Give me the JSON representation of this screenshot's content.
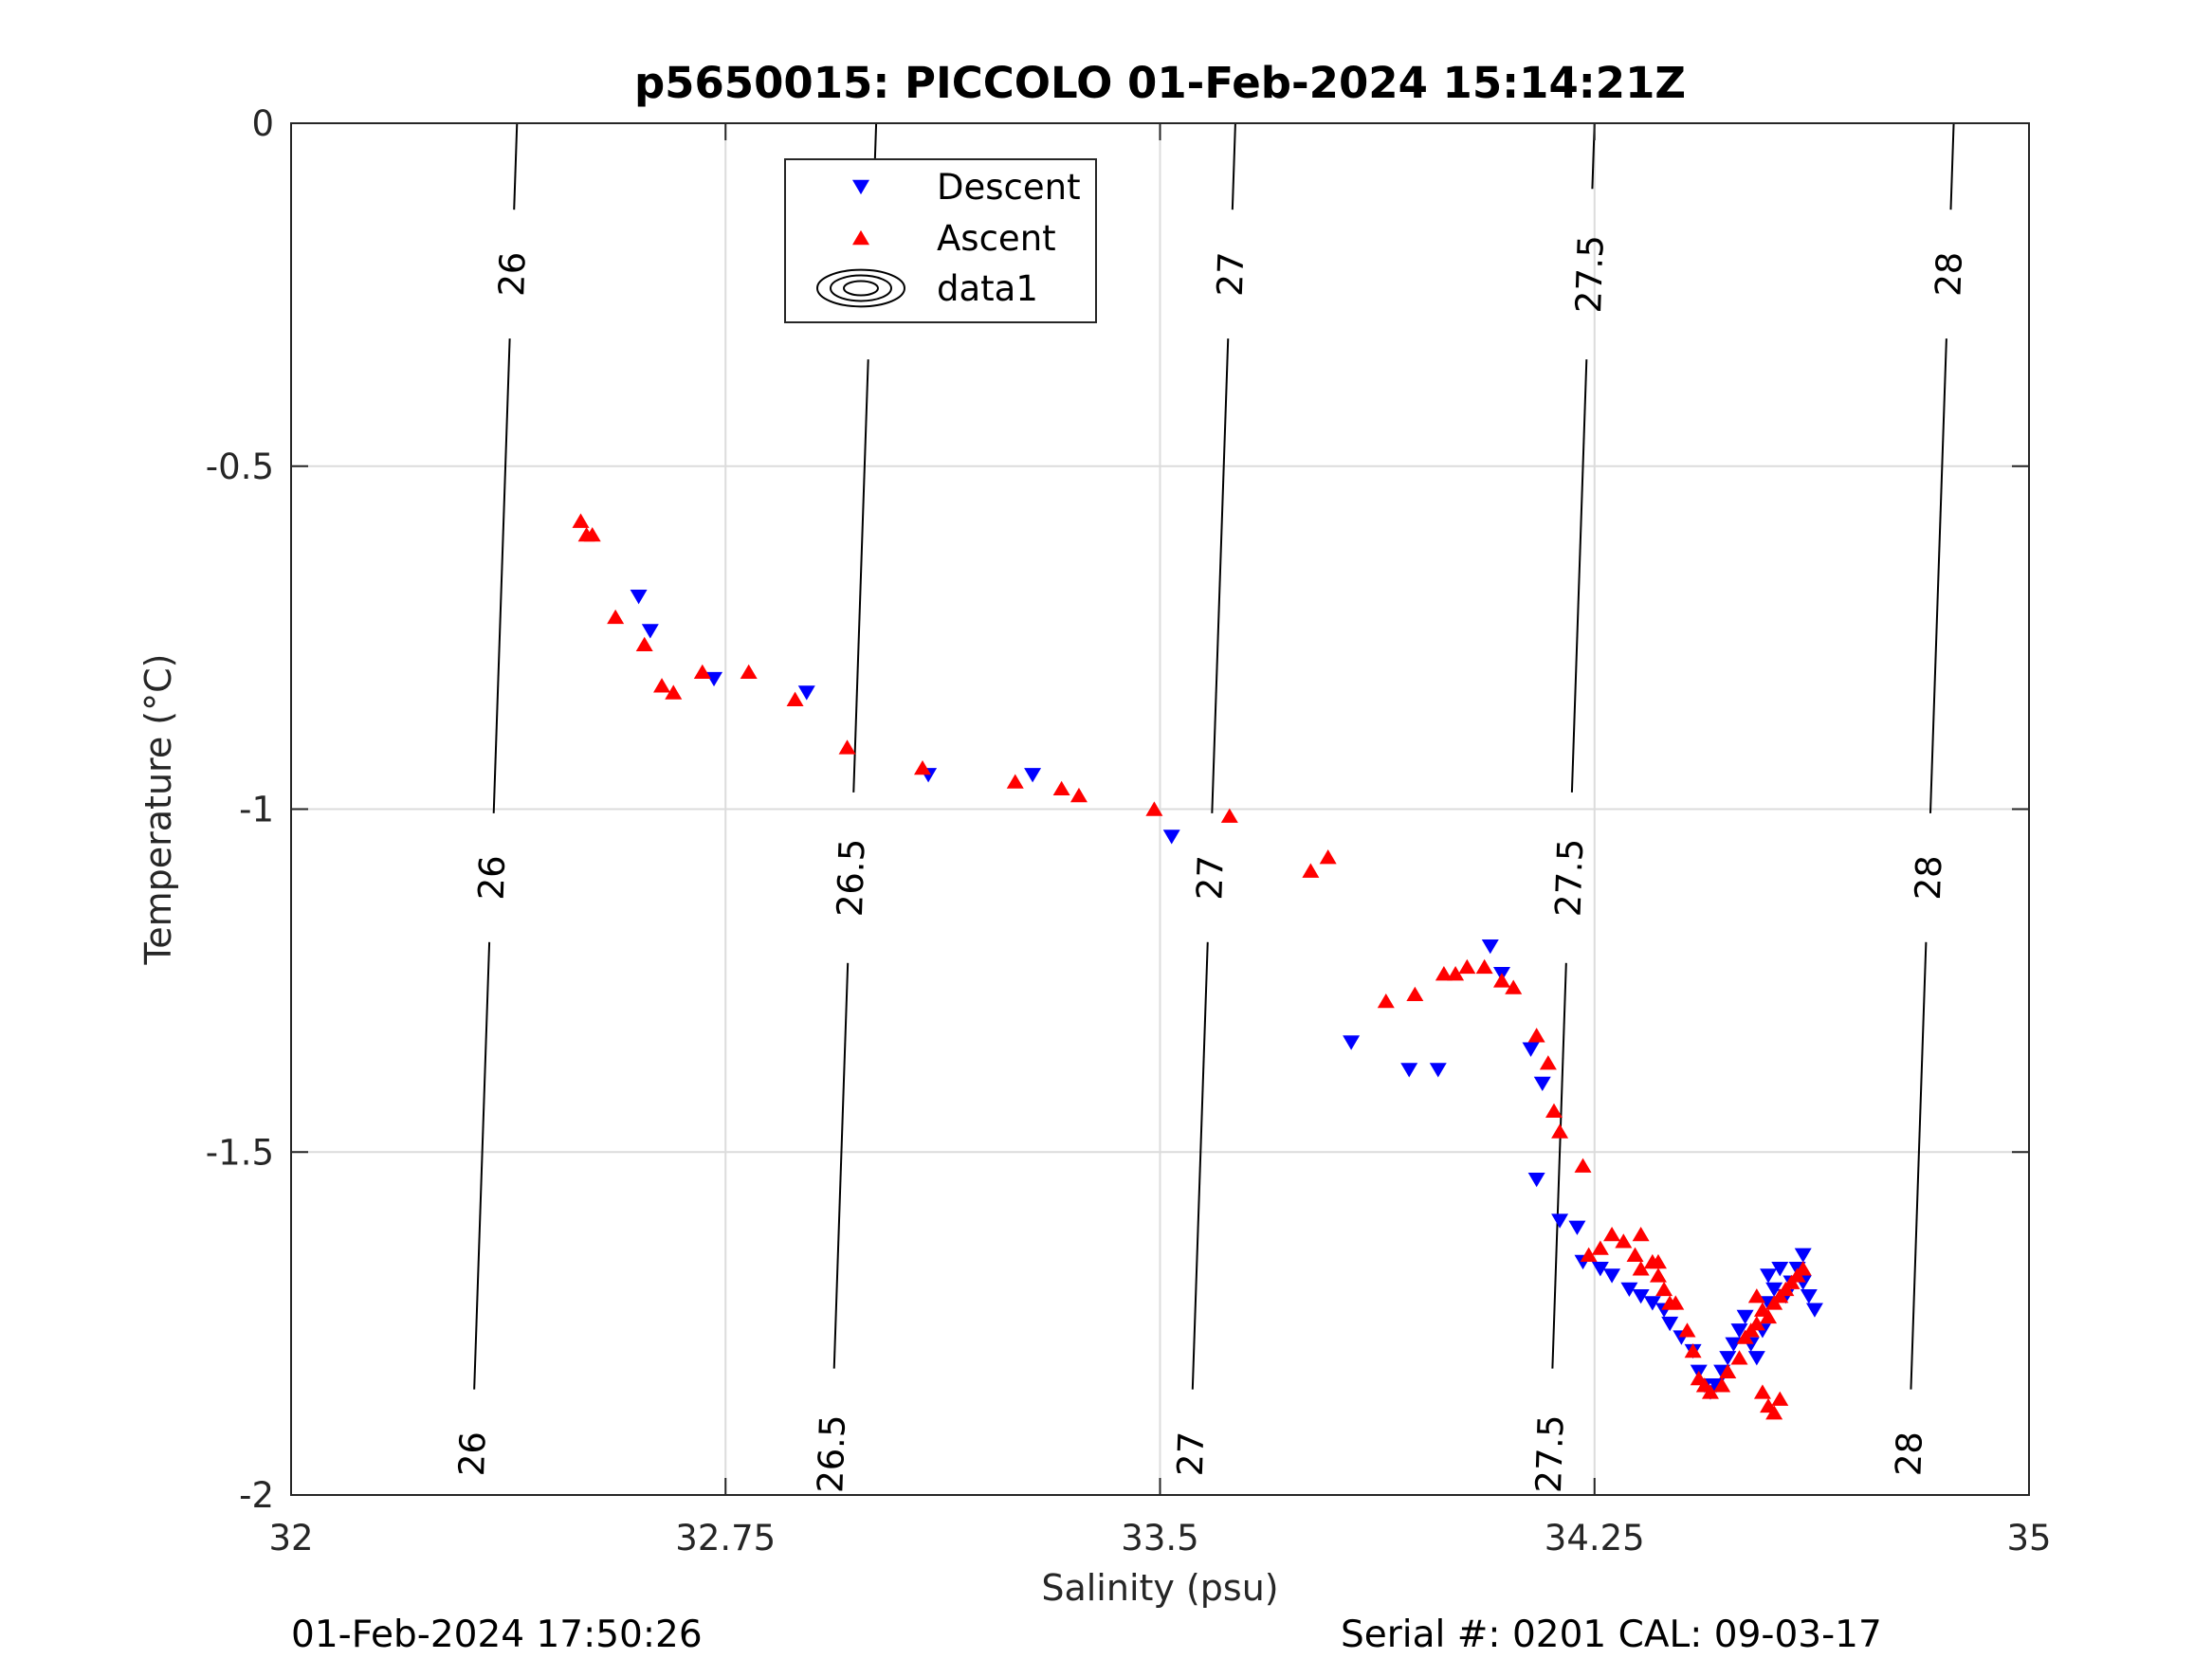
{
  "chart_data": {
    "type": "scatter",
    "title": "p5650015: PICCOLO 01-Feb-2024 15:14:21Z",
    "xlabel": "Salinity (psu)",
    "ylabel": "Temperature (°C)",
    "xlim": [
      32,
      35
    ],
    "ylim": [
      -2,
      0
    ],
    "x_ticks": [
      32,
      32.75,
      33.5,
      34.25,
      35
    ],
    "x_tick_labels": [
      "32",
      "32.75",
      "33.5",
      "34.25",
      "35"
    ],
    "y_ticks": [
      0,
      -0.5,
      -1,
      -1.5,
      -2
    ],
    "y_tick_labels": [
      "0",
      "-0.5",
      "-1",
      "-1.5",
      "-2"
    ],
    "grid": true,
    "legend_position": "top-center",
    "legend": [
      "Descent",
      "Ascent",
      "data1"
    ],
    "series": [
      {
        "name": "Descent",
        "marker": "triangle-down",
        "color": "#0000ff",
        "points": [
          [
            32.6,
            -0.69
          ],
          [
            32.62,
            -0.74
          ],
          [
            32.73,
            -0.81
          ],
          [
            32.89,
            -0.83
          ],
          [
            33.1,
            -0.95
          ],
          [
            33.28,
            -0.95
          ],
          [
            33.52,
            -1.04
          ],
          [
            33.83,
            -1.34
          ],
          [
            33.93,
            -1.38
          ],
          [
            33.98,
            -1.38
          ],
          [
            34.07,
            -1.2
          ],
          [
            34.09,
            -1.24
          ],
          [
            34.14,
            -1.35
          ],
          [
            34.15,
            -1.54
          ],
          [
            34.16,
            -1.4
          ],
          [
            34.19,
            -1.6
          ],
          [
            34.22,
            -1.61
          ],
          [
            34.23,
            -1.66
          ],
          [
            34.26,
            -1.67
          ],
          [
            34.28,
            -1.68
          ],
          [
            34.31,
            -1.7
          ],
          [
            34.33,
            -1.71
          ],
          [
            34.35,
            -1.72
          ],
          [
            34.37,
            -1.73
          ],
          [
            34.38,
            -1.75
          ],
          [
            34.4,
            -1.77
          ],
          [
            34.42,
            -1.79
          ],
          [
            34.43,
            -1.82
          ],
          [
            34.44,
            -1.84
          ],
          [
            34.45,
            -1.85
          ],
          [
            34.46,
            -1.84
          ],
          [
            34.47,
            -1.82
          ],
          [
            34.48,
            -1.8
          ],
          [
            34.49,
            -1.78
          ],
          [
            34.5,
            -1.76
          ],
          [
            34.51,
            -1.74
          ],
          [
            34.52,
            -1.78
          ],
          [
            34.53,
            -1.8
          ],
          [
            34.54,
            -1.76
          ],
          [
            34.55,
            -1.72
          ],
          [
            34.55,
            -1.68
          ],
          [
            34.56,
            -1.7
          ],
          [
            34.57,
            -1.67
          ],
          [
            34.58,
            -1.71
          ],
          [
            34.59,
            -1.69
          ],
          [
            34.6,
            -1.67
          ],
          [
            34.61,
            -1.65
          ],
          [
            34.62,
            -1.71
          ],
          [
            34.63,
            -1.73
          ],
          [
            34.61,
            -1.69
          ]
        ]
      },
      {
        "name": "Ascent",
        "marker": "triangle-up",
        "color": "#ff0000",
        "points": [
          [
            32.5,
            -0.58
          ],
          [
            32.51,
            -0.6
          ],
          [
            32.52,
            -0.6
          ],
          [
            32.56,
            -0.72
          ],
          [
            32.61,
            -0.76
          ],
          [
            32.64,
            -0.82
          ],
          [
            32.66,
            -0.83
          ],
          [
            32.71,
            -0.8
          ],
          [
            32.79,
            -0.8
          ],
          [
            32.87,
            -0.84
          ],
          [
            32.96,
            -0.91
          ],
          [
            33.09,
            -0.94
          ],
          [
            33.25,
            -0.96
          ],
          [
            33.33,
            -0.97
          ],
          [
            33.36,
            -0.98
          ],
          [
            33.49,
            -1.0
          ],
          [
            33.62,
            -1.01
          ],
          [
            33.76,
            -1.09
          ],
          [
            33.79,
            -1.07
          ],
          [
            33.89,
            -1.28
          ],
          [
            33.94,
            -1.27
          ],
          [
            33.99,
            -1.24
          ],
          [
            34.01,
            -1.24
          ],
          [
            34.03,
            -1.23
          ],
          [
            34.06,
            -1.23
          ],
          [
            34.09,
            -1.25
          ],
          [
            34.11,
            -1.26
          ],
          [
            34.15,
            -1.33
          ],
          [
            34.17,
            -1.37
          ],
          [
            34.18,
            -1.44
          ],
          [
            34.19,
            -1.47
          ],
          [
            34.23,
            -1.52
          ],
          [
            34.24,
            -1.65
          ],
          [
            34.26,
            -1.64
          ],
          [
            34.28,
            -1.62
          ],
          [
            34.3,
            -1.63
          ],
          [
            34.32,
            -1.65
          ],
          [
            34.33,
            -1.67
          ],
          [
            34.35,
            -1.66
          ],
          [
            34.36,
            -1.68
          ],
          [
            34.37,
            -1.7
          ],
          [
            34.39,
            -1.72
          ],
          [
            34.41,
            -1.76
          ],
          [
            34.42,
            -1.79
          ],
          [
            34.43,
            -1.83
          ],
          [
            34.44,
            -1.84
          ],
          [
            34.45,
            -1.85
          ],
          [
            34.47,
            -1.84
          ],
          [
            34.48,
            -1.82
          ],
          [
            34.5,
            -1.8
          ],
          [
            34.51,
            -1.77
          ],
          [
            34.53,
            -1.75
          ],
          [
            34.54,
            -1.73
          ],
          [
            34.55,
            -1.74
          ],
          [
            34.56,
            -1.72
          ],
          [
            34.57,
            -1.71
          ],
          [
            34.58,
            -1.7
          ],
          [
            34.59,
            -1.69
          ],
          [
            34.6,
            -1.68
          ],
          [
            34.61,
            -1.67
          ],
          [
            34.54,
            -1.85
          ],
          [
            34.55,
            -1.87
          ],
          [
            34.56,
            -1.88
          ],
          [
            34.57,
            -1.86
          ],
          [
            34.52,
            -1.76
          ],
          [
            34.53,
            -1.71
          ],
          [
            34.33,
            -1.62
          ],
          [
            34.36,
            -1.66
          ],
          [
            34.38,
            -1.72
          ]
        ]
      }
    ],
    "contours": {
      "name": "data1",
      "label_values": [
        "26",
        "26.5",
        "27",
        "27.5",
        "28"
      ],
      "lines": [
        {
          "label": "26",
          "top": [
            32.39,
            0
          ],
          "bottom": [
            32.31,
            -2
          ]
        },
        {
          "label": "26.5",
          "top": [
            33.01,
            0
          ],
          "bottom": [
            32.93,
            -2
          ]
        },
        {
          "label": "27",
          "top": [
            33.63,
            0
          ],
          "bottom": [
            33.55,
            -2
          ]
        },
        {
          "label": "27.5",
          "top": [
            34.25,
            0
          ],
          "bottom": [
            34.17,
            -2
          ]
        },
        {
          "label": "28",
          "top": [
            34.87,
            0
          ],
          "bottom": [
            34.79,
            -2
          ]
        }
      ]
    }
  },
  "footer": {
    "left": "01-Feb-2024 17:50:26",
    "right": "Serial #: 0201  CAL: 09-03-17"
  },
  "colors": {
    "descent": "#0000ff",
    "ascent": "#ff0000",
    "contour": "#000000",
    "grid": "#dcdcdc"
  }
}
